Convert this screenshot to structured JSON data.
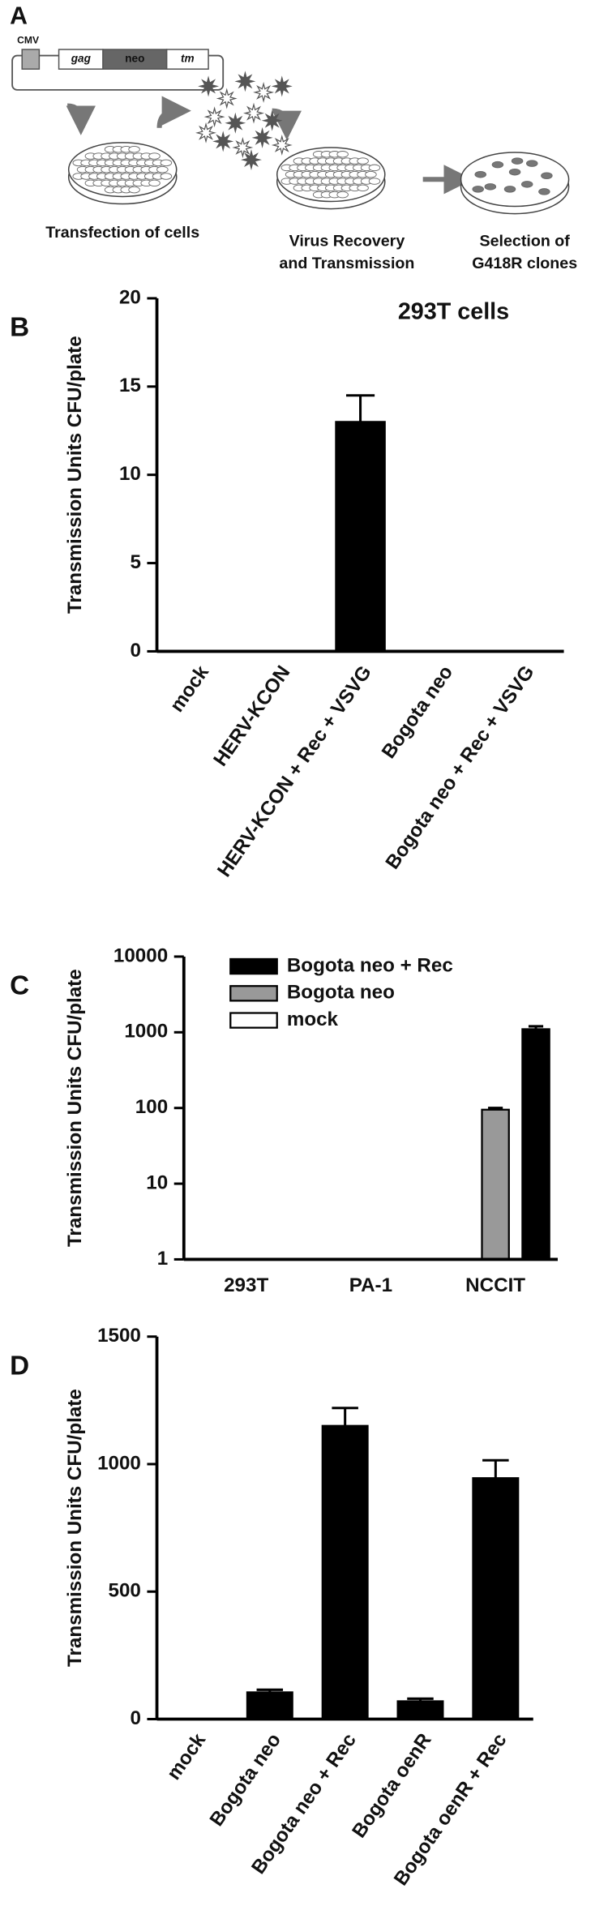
{
  "panel_a": {
    "label": "A",
    "plasmid": [
      "CMV",
      "gag",
      "neo",
      "tm"
    ],
    "steps": [
      "Transfection of cells",
      "Virus Recovery",
      "and Transmission",
      "Selection of",
      "G418R clones"
    ]
  },
  "chart_data": [
    {
      "type": "bar",
      "panel_label": "B",
      "title": "293T cells",
      "y_label": "Transmission Units CFU/plate",
      "categories": [
        "mock",
        "HERV-KCON",
        "HERV-KCON + Rec + VSVG",
        "Bogota neo",
        "Bogota neo + Rec + VSVG"
      ],
      "values": [
        0,
        0,
        13,
        0,
        0
      ],
      "errors": [
        0,
        0,
        1.5,
        0,
        0
      ],
      "color": "#000000",
      "ylim": [
        0,
        20
      ],
      "yticks": [
        0,
        5,
        10,
        15,
        20
      ]
    },
    {
      "type": "bar",
      "panel_label": "C",
      "y_label": "Transmission Units CFU/plate",
      "log_scale": true,
      "categories": [
        "293T",
        "PA-1",
        "NCCIT"
      ],
      "series": [
        {
          "name": "mock",
          "color": "#ffffff",
          "values": [
            1,
            1,
            1
          ],
          "errors": [
            0,
            0,
            0
          ]
        },
        {
          "name": "Bogota neo",
          "color": "#999999",
          "values": [
            1,
            1,
            95
          ],
          "errors": [
            0,
            0,
            5
          ]
        },
        {
          "name": "Bogota neo + Rec",
          "color": "#000000",
          "values": [
            1,
            1,
            1100
          ],
          "errors": [
            0,
            0,
            100
          ]
        }
      ],
      "legend": "upper left",
      "ylim": [
        1,
        10000
      ],
      "yticks": [
        1,
        10,
        100,
        1000,
        10000
      ]
    },
    {
      "type": "bar",
      "panel_label": "D",
      "y_label": "Transmission Units CFU/plate",
      "categories": [
        "mock",
        "Bogota neo",
        "Bogota neo + Rec",
        "Bogota oenR",
        "Bogota oenR + Rec"
      ],
      "values": [
        0,
        105,
        1150,
        70,
        945
      ],
      "errors": [
        0,
        10,
        70,
        10,
        70
      ],
      "color": "#000000",
      "ylim": [
        0,
        1500
      ],
      "yticks": [
        0,
        500,
        1000,
        1500
      ]
    }
  ]
}
